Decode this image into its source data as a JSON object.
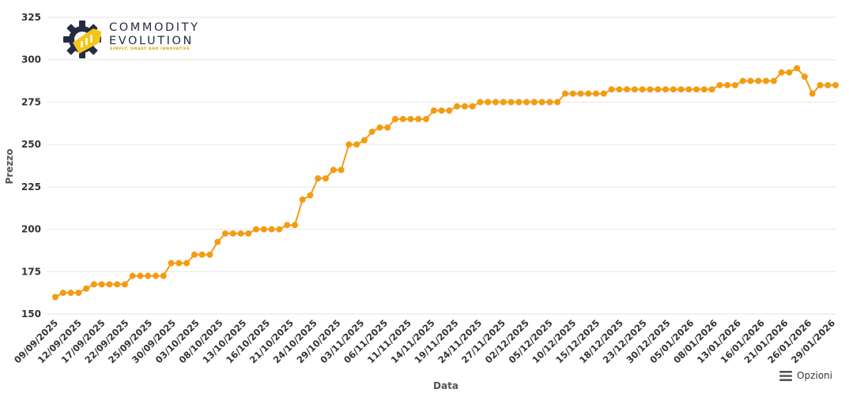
{
  "logo": {
    "line1": "COMMODITY",
    "line2": "EVOLUTION",
    "tagline": "SIMPLY, SMART AND INNOVATIVE",
    "icon": "gear-with-bar-chart-icon",
    "colors": {
      "navy": "#262b45",
      "yellow": "#f5c518"
    }
  },
  "options": {
    "label": "Opzioni",
    "icon": "hamburger-menu-icon"
  },
  "chart_data": {
    "type": "line",
    "title": "",
    "xlabel": "Data",
    "ylabel": "Prezzo",
    "ylim": [
      150,
      325
    ],
    "yticks": [
      150,
      175,
      200,
      225,
      250,
      275,
      300,
      325
    ],
    "grid": true,
    "legend": "none",
    "color": "#f39c12",
    "xticks": [
      "09/09/2025",
      "12/09/2025",
      "17/09/2025",
      "22/09/2025",
      "25/09/2025",
      "30/09/2025",
      "03/10/2025",
      "08/10/2025",
      "13/10/2025",
      "16/10/2025",
      "21/10/2025",
      "24/10/2025",
      "29/10/2025",
      "03/11/2025",
      "06/11/2025",
      "11/11/2025",
      "14/11/2025",
      "19/11/2025",
      "24/11/2025",
      "27/11/2025",
      "02/12/2025",
      "05/12/2025",
      "10/12/2025",
      "15/12/2025",
      "18/12/2025",
      "23/12/2025",
      "30/12/2025",
      "05/01/2026",
      "08/01/2026",
      "13/01/2026",
      "16/01/2026",
      "21/01/2026",
      "26/01/2026",
      "29/01/2026"
    ],
    "values": [
      160,
      162.5,
      162.5,
      162.5,
      165,
      167.5,
      167.5,
      167.5,
      167.5,
      167.5,
      172.5,
      172.5,
      172.5,
      172.5,
      172.5,
      180,
      180,
      180,
      185,
      185,
      185,
      192.5,
      197.5,
      197.5,
      197.5,
      197.5,
      200,
      200,
      200,
      200,
      202.5,
      202.5,
      217.5,
      220,
      230,
      230,
      235,
      235,
      250,
      250,
      252.5,
      257.5,
      260,
      260,
      265,
      265,
      265,
      265,
      265,
      270,
      270,
      270,
      272.5,
      272.5,
      272.5,
      275,
      275,
      275,
      275,
      275,
      275,
      275,
      275,
      275,
      275,
      275,
      280,
      280,
      280,
      280,
      280,
      280,
      282.5,
      282.5,
      282.5,
      282.5,
      282.5,
      282.5,
      282.5,
      282.5,
      282.5,
      282.5,
      282.5,
      282.5,
      282.5,
      282.5,
      285,
      285,
      285,
      287.5,
      287.5,
      287.5,
      287.5,
      287.5,
      292.5,
      292.5,
      295,
      290,
      280,
      285,
      285,
      285
    ]
  }
}
